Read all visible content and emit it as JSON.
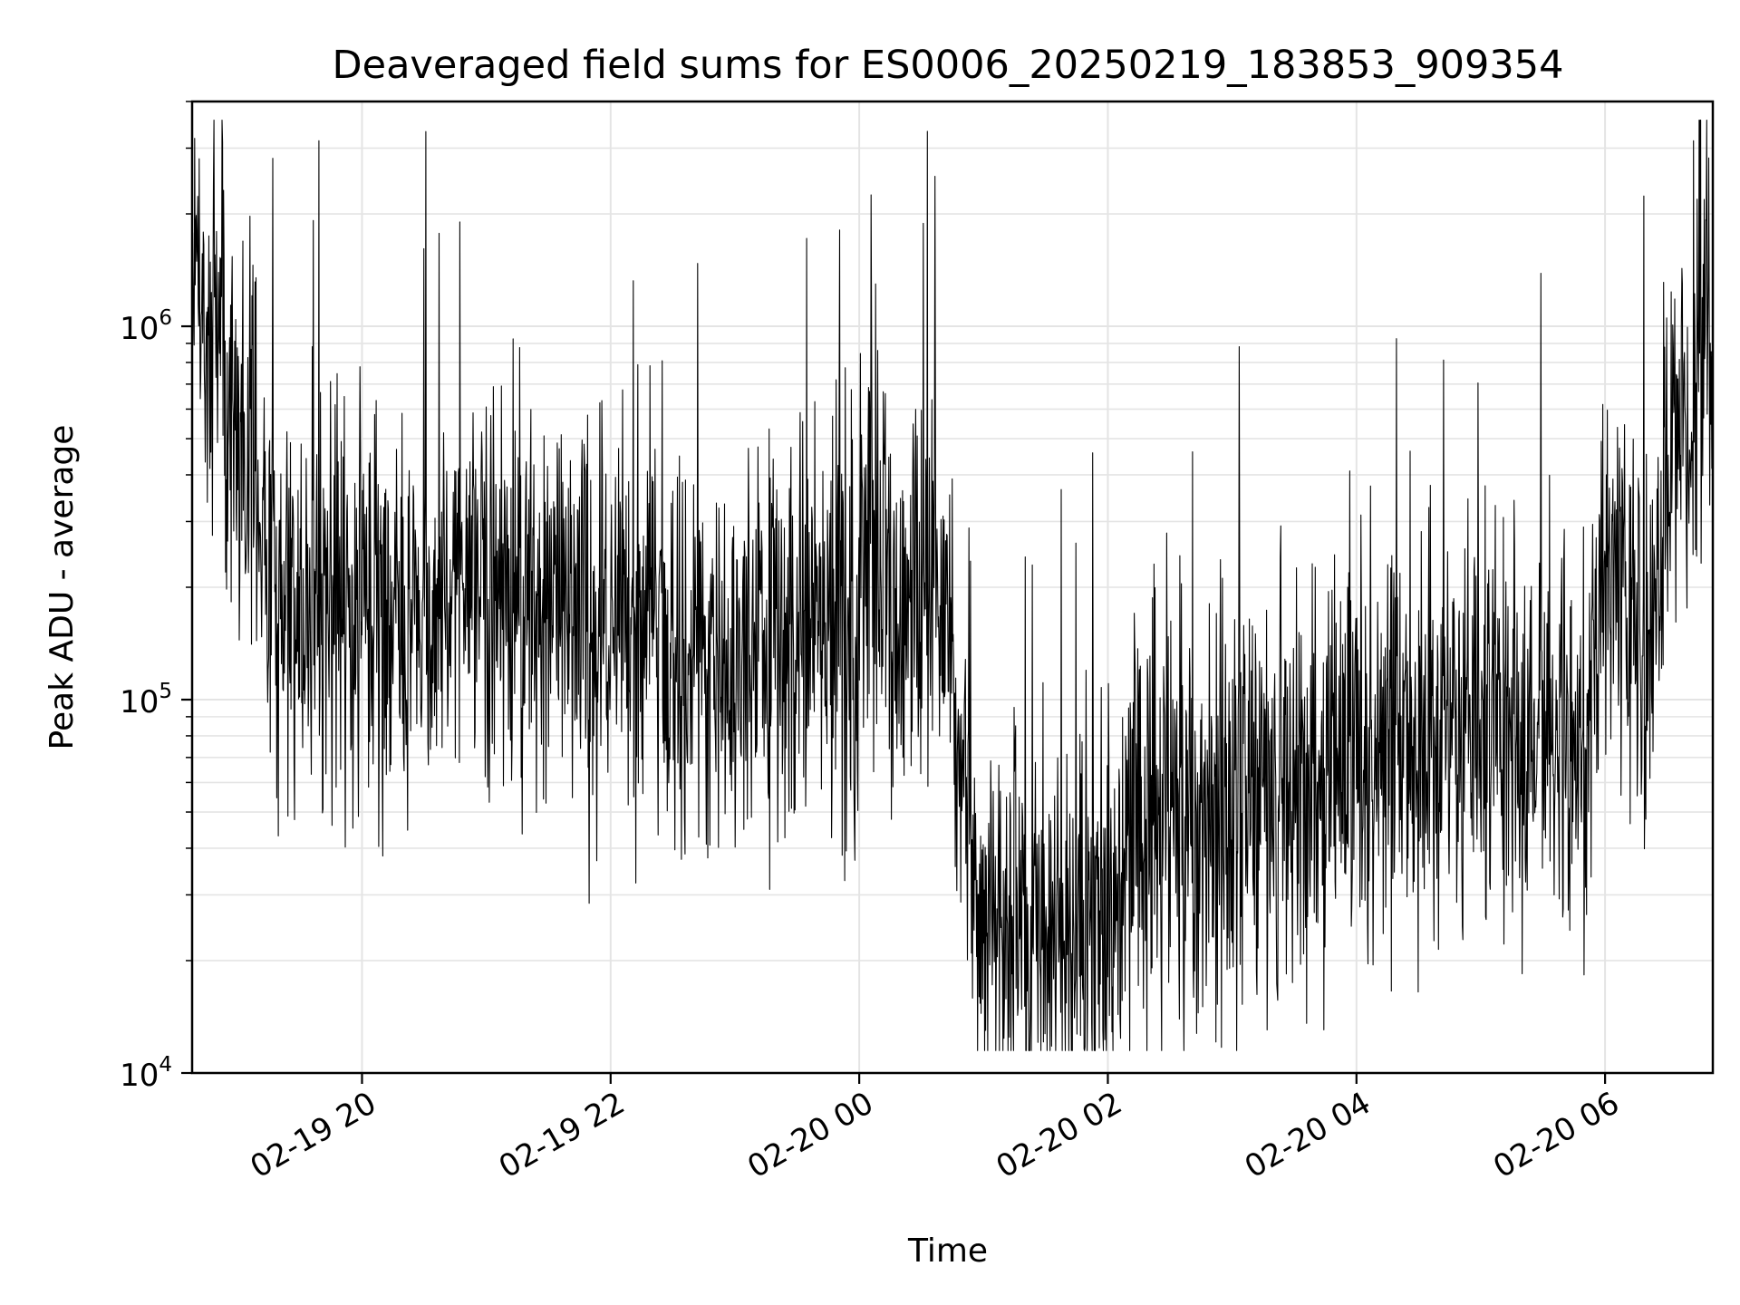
{
  "chart_data": {
    "type": "line",
    "title": "Deaveraged field sums for ES0006_20250219_183853_909354",
    "xlabel": "Time",
    "ylabel": "Peak ADU - average",
    "yscale": "log",
    "ylim": [
      10000,
      4000000
    ],
    "xlim": [
      "2025-02-19 18:38",
      "2025-02-20 06:52"
    ],
    "grid": true,
    "line_color": "#000000",
    "x_ticks": [
      {
        "time": "2025-02-19 20:00",
        "label": "02-19 20"
      },
      {
        "time": "2025-02-19 22:00",
        "label": "02-19 22"
      },
      {
        "time": "2025-02-20 00:00",
        "label": "02-20 00"
      },
      {
        "time": "2025-02-20 02:00",
        "label": "02-20 02"
      },
      {
        "time": "2025-02-20 04:00",
        "label": "02-20 04"
      },
      {
        "time": "2025-02-20 06:00",
        "label": "02-20 06"
      }
    ],
    "y_ticks": [
      {
        "value": 10000,
        "base": "10",
        "exp": "4"
      },
      {
        "value": 100000,
        "base": "10",
        "exp": "5"
      },
      {
        "value": 1000000,
        "base": "10",
        "exp": "6"
      }
    ],
    "series": [
      {
        "x": [
          "2025-02-19 18:40",
          "2025-02-19 18:50",
          "2025-02-19 19:00",
          "2025-02-19 19:10",
          "2025-02-19 19:20",
          "2025-02-19 19:40",
          "2025-02-19 20:00",
          "2025-02-19 20:30",
          "2025-02-19 21:00",
          "2025-02-19 21:30",
          "2025-02-19 22:00",
          "2025-02-19 22:30",
          "2025-02-19 23:00",
          "2025-02-19 23:30",
          "2025-02-20 00:00",
          "2025-02-20 00:20",
          "2025-02-20 00:40",
          "2025-02-20 00:50",
          "2025-02-20 01:00",
          "2025-02-20 01:30",
          "2025-02-20 02:00",
          "2025-02-20 02:10",
          "2025-02-20 02:30",
          "2025-02-20 03:00",
          "2025-02-20 03:30",
          "2025-02-20 04:00",
          "2025-02-20 04:30",
          "2025-02-20 05:00",
          "2025-02-20 05:30",
          "2025-02-20 05:50",
          "2025-02-20 06:00",
          "2025-02-20 06:20",
          "2025-02-20 06:30",
          "2025-02-20 06:50"
        ],
        "y": [
          1200000,
          900000,
          500000,
          300000,
          200000,
          180000,
          180000,
          170000,
          200000,
          180000,
          160000,
          150000,
          140000,
          150000,
          180000,
          200000,
          170000,
          50000,
          25000,
          22000,
          25000,
          45000,
          48000,
          52000,
          60000,
          75000,
          80000,
          85000,
          80000,
          75000,
          200000,
          130000,
          400000,
          1000000
        ]
      }
    ]
  }
}
